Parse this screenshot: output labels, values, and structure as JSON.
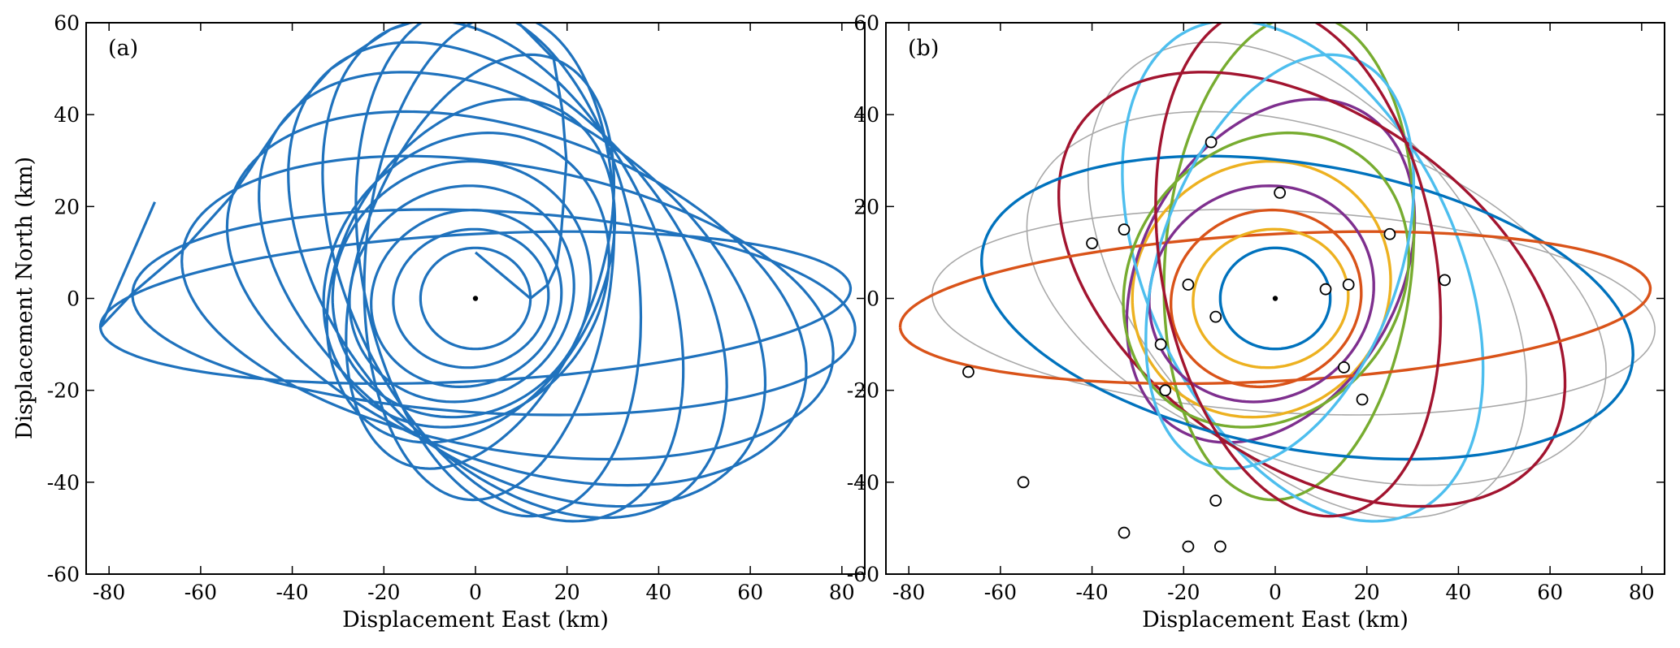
{
  "figure": {
    "panels": [
      {
        "label": "(a)",
        "xlabel": "Displacement East (km)",
        "ylabel": "Displacement North (km)"
      },
      {
        "label": "(b)",
        "xlabel": "Displacement East (km)",
        "ylabel": ""
      }
    ]
  },
  "colors": {
    "panel_a": "#1f72bd",
    "panel_b_grey": "#a9a9a9",
    "panel_b_palette": [
      "#0072BD",
      "#D95319",
      "#EDB120",
      "#7E2F8E",
      "#77AC30",
      "#4DBEEE",
      "#A2142F"
    ],
    "marker_face": "#ffffff",
    "marker_edge": "#000000",
    "origin": "#000000"
  },
  "chart_data": [
    {
      "type": "line",
      "panel": "(a)",
      "title": "",
      "xlabel": "Displacement East (km)",
      "ylabel": "Displacement North (km)",
      "xlim": [
        -85,
        85
      ],
      "ylim": [
        -60,
        60
      ],
      "xticks": [
        -80,
        -60,
        -40,
        -20,
        0,
        20,
        40,
        60,
        80
      ],
      "yticks": [
        -60,
        -40,
        -20,
        0,
        20,
        40,
        60
      ],
      "grid": false,
      "legend": "none",
      "origin_point": [
        0,
        0
      ],
      "series": [
        {
          "style": "spiral of nested ellipses growing outward from the origin",
          "start": [
            0,
            10
          ],
          "end": [
            -70,
            21
          ],
          "ellipses": [
            {
              "center": [
                0,
                0
              ],
              "a": 12,
              "b": 11,
              "angle_deg": 0
            },
            {
              "center": [
                -1,
                0
              ],
              "a": 17,
              "b": 15,
              "angle_deg": 10
            },
            {
              "center": [
                -2,
                0
              ],
              "a": 21,
              "b": 19,
              "angle_deg": 20
            },
            {
              "center": [
                -3,
                1
              ],
              "a": 25,
              "b": 23,
              "angle_deg": 30
            },
            {
              "center": [
                -3,
                2
              ],
              "a": 29,
              "b": 27,
              "angle_deg": 40
            },
            {
              "center": [
                -2,
                4
              ],
              "a": 34,
              "b": 29,
              "angle_deg": 50
            },
            {
              "center": [
                -1,
                6
              ],
              "a": 40,
              "b": 28,
              "angle_deg": 60
            },
            {
              "center": [
                1,
                8
              ],
              "a": 47,
              "b": 26,
              "angle_deg": 70
            },
            {
              "center": [
                3,
                9
              ],
              "a": 53,
              "b": 27,
              "angle_deg": 85
            },
            {
              "center": [
                5,
                8
              ],
              "a": 56,
              "b": 30,
              "angle_deg": 100
            },
            {
              "center": [
                6,
                6
              ],
              "a": 58,
              "b": 34,
              "angle_deg": 115
            },
            {
              "center": [
                7,
                4
              ],
              "a": 60,
              "b": 37,
              "angle_deg": 130
            },
            {
              "center": [
                8,
                2
              ],
              "a": 62,
              "b": 38,
              "angle_deg": 145
            },
            {
              "center": [
                9,
                0
              ],
              "a": 66,
              "b": 36,
              "angle_deg": 160
            },
            {
              "center": [
                7,
                -2
              ],
              "a": 72,
              "b": 31,
              "angle_deg": 170
            },
            {
              "center": [
                4,
                -3
              ],
              "a": 79,
              "b": 22,
              "angle_deg": 177
            },
            {
              "center": [
                0,
                -2
              ],
              "a": 82,
              "b": 16,
              "angle_deg": 183
            }
          ]
        }
      ]
    },
    {
      "type": "line",
      "panel": "(b)",
      "title": "",
      "xlabel": "Displacement East (km)",
      "ylabel": "",
      "xlim": [
        -85,
        85
      ],
      "ylim": [
        -60,
        60
      ],
      "xticks": [
        -80,
        -60,
        -40,
        -20,
        0,
        20,
        40,
        60,
        80
      ],
      "yticks": [
        -60,
        -40,
        -20,
        0,
        20,
        40,
        60
      ],
      "grid": false,
      "legend": "none",
      "origin_point": [
        0,
        0
      ],
      "background_ellipses": [
        {
          "center": [
            -1,
            0
          ],
          "a": 17,
          "b": 15,
          "angle_deg": 10
        },
        {
          "center": [
            -3,
            1
          ],
          "a": 25,
          "b": 23,
          "angle_deg": 30
        },
        {
          "center": [
            -2,
            4
          ],
          "a": 34,
          "b": 29,
          "angle_deg": 50
        },
        {
          "center": [
            1,
            8
          ],
          "a": 47,
          "b": 26,
          "angle_deg": 70
        },
        {
          "center": [
            5,
            8
          ],
          "a": 56,
          "b": 30,
          "angle_deg": 100
        },
        {
          "center": [
            7,
            4
          ],
          "a": 60,
          "b": 37,
          "angle_deg": 130
        },
        {
          "center": [
            9,
            0
          ],
          "a": 66,
          "b": 36,
          "angle_deg": 160
        },
        {
          "center": [
            4,
            -3
          ],
          "a": 79,
          "b": 22,
          "angle_deg": 177
        }
      ],
      "series": [
        {
          "center": [
            0,
            0
          ],
          "a": 12,
          "b": 11,
          "angle_deg": 0
        },
        {
          "center": [
            -2,
            0
          ],
          "a": 21,
          "b": 19,
          "angle_deg": 20
        },
        {
          "center": [
            -3,
            2
          ],
          "a": 29,
          "b": 27,
          "angle_deg": 40
        },
        {
          "center": [
            -1,
            6
          ],
          "a": 40,
          "b": 28,
          "angle_deg": 60
        },
        {
          "center": [
            3,
            9
          ],
          "a": 53,
          "b": 27,
          "angle_deg": 85
        },
        {
          "center": [
            6,
            6
          ],
          "a": 58,
          "b": 34,
          "angle_deg": 115
        },
        {
          "center": [
            8,
            2
          ],
          "a": 62,
          "b": 38,
          "angle_deg": 145
        },
        {
          "center": [
            7,
            -2
          ],
          "a": 72,
          "b": 31,
          "angle_deg": 170
        },
        {
          "center": [
            0,
            -2
          ],
          "a": 82,
          "b": 16,
          "angle_deg": 183
        },
        {
          "center": [
            -1,
            0
          ],
          "a": 17,
          "b": 15,
          "angle_deg": 10
        },
        {
          "center": [
            -3,
            1
          ],
          "a": 25,
          "b": 23,
          "angle_deg": 30
        },
        {
          "center": [
            -2,
            4
          ],
          "a": 34,
          "b": 29,
          "angle_deg": 50
        },
        {
          "center": [
            1,
            8
          ],
          "a": 47,
          "b": 26,
          "angle_deg": 70
        },
        {
          "center": [
            5,
            8
          ],
          "a": 56,
          "b": 30,
          "angle_deg": 100
        }
      ],
      "markers": [
        [
          -14,
          34
        ],
        [
          1,
          23
        ],
        [
          -33,
          15
        ],
        [
          -40,
          12
        ],
        [
          25,
          14
        ],
        [
          -19,
          3
        ],
        [
          11,
          2
        ],
        [
          16,
          3
        ],
        [
          37,
          4
        ],
        [
          -13,
          -4
        ],
        [
          -25,
          -10
        ],
        [
          -67,
          -16
        ],
        [
          -24,
          -20
        ],
        [
          15,
          -15
        ],
        [
          19,
          -22
        ],
        [
          -55,
          -40
        ],
        [
          -13,
          -44
        ],
        [
          -33,
          -51
        ],
        [
          -19,
          -54
        ],
        [
          -12,
          -54
        ]
      ]
    }
  ]
}
